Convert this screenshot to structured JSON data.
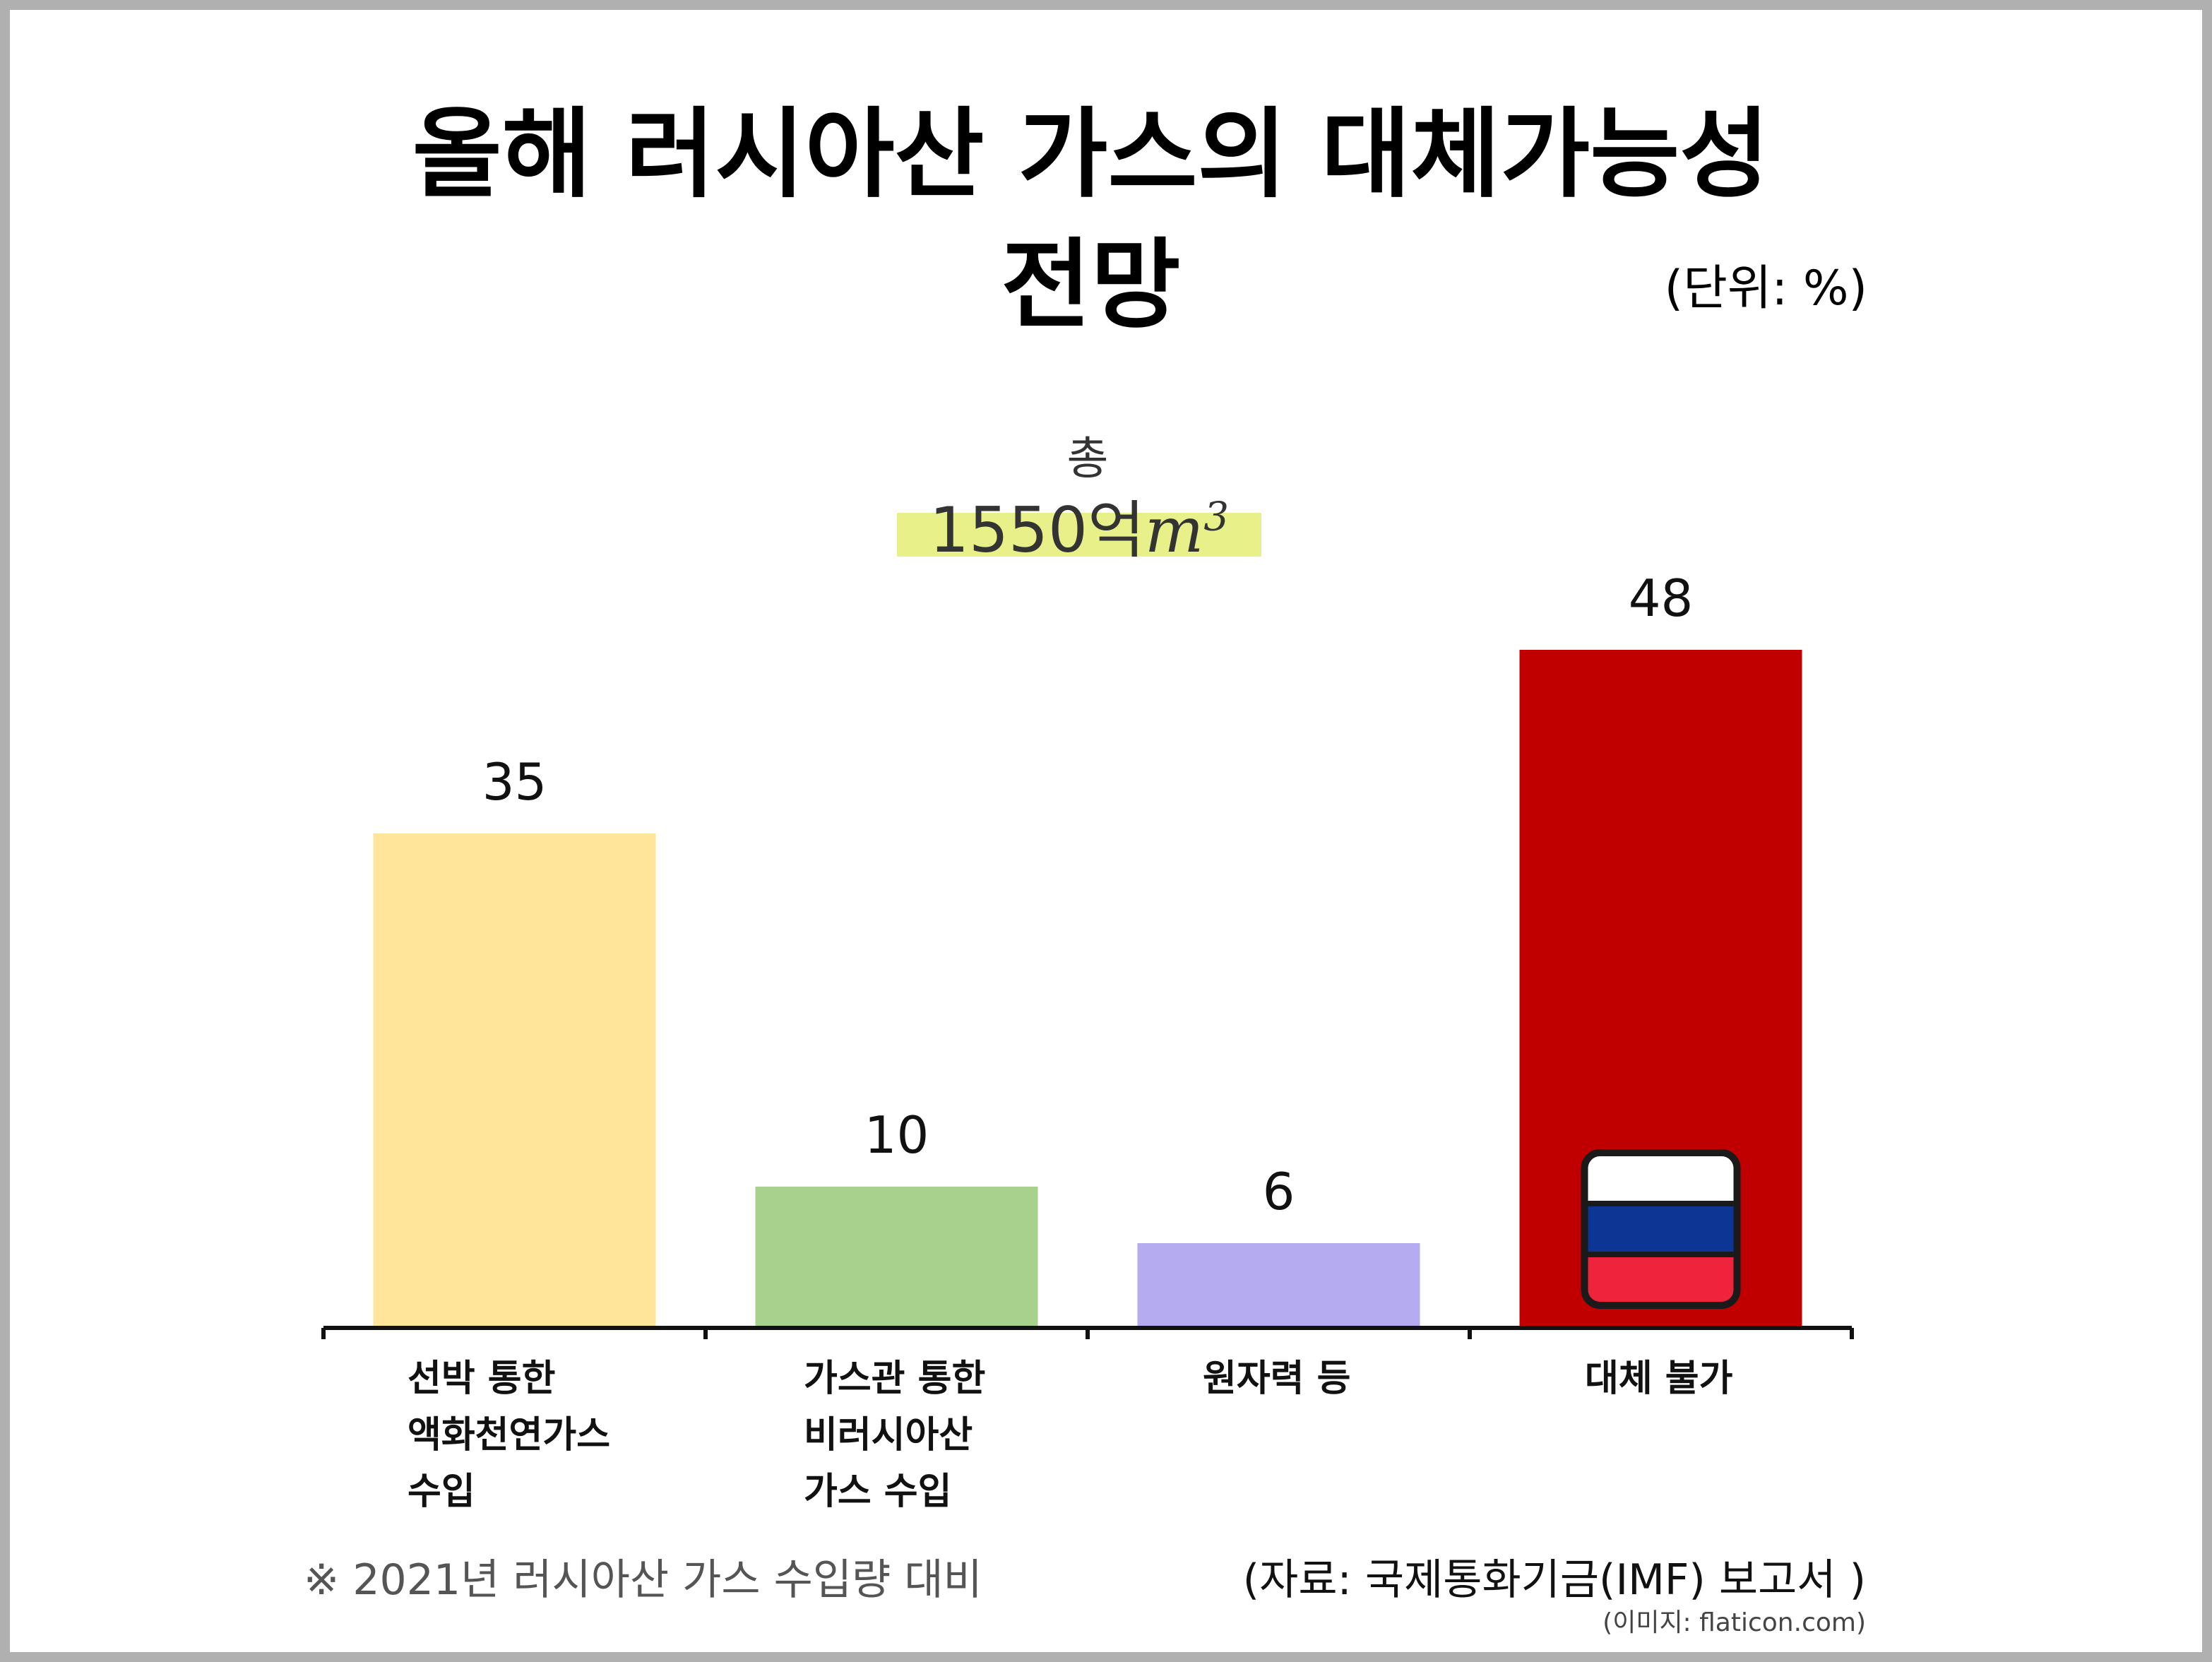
{
  "title_line1": "올해 러시아산 가스의 대체가능성",
  "title_line2": "전망",
  "unit": "(단위: %)",
  "total": {
    "label": "총",
    "value": "1550억",
    "unit_base": "m",
    "unit_exp": "3",
    "highlight_color": "#e8f089"
  },
  "chart_data": {
    "type": "bar",
    "categories": [
      "선박 통한 액화천연가스 수입",
      "가스관 통한 비러시아산 가스 수입",
      "원자력 등",
      "대체 불가"
    ],
    "category_lines": [
      [
        "선박 통한",
        "액화천연가스",
        "수입"
      ],
      [
        "가스관 통한",
        "비러시아산",
        "가스 수입"
      ],
      [
        "원자력 등"
      ],
      [
        "대체 불가"
      ]
    ],
    "values": [
      35,
      10,
      6,
      48
    ],
    "data_labels": [
      "35",
      "10",
      "6",
      "48"
    ],
    "colors": [
      "#fee599",
      "#a9d18e",
      "#b4abf1",
      "#c00000"
    ],
    "ylim": [
      0,
      48
    ],
    "title": "올해 러시아산 가스의 대체가능성 전망",
    "xlabel": "",
    "ylabel": "",
    "grid": false,
    "legend": "none"
  },
  "flag": {
    "icon": "russia-flag-icon",
    "colors": [
      "#ffffff",
      "#0d3594",
      "#ef233c"
    ],
    "outline": "#1a1a1a"
  },
  "footnote": "※ 2021년 러시아산 가스 수입량 대비",
  "source": "(자료: 국제통화기금(IMF) 보고서 )",
  "image_credit": "(이미지: flaticon.com)"
}
